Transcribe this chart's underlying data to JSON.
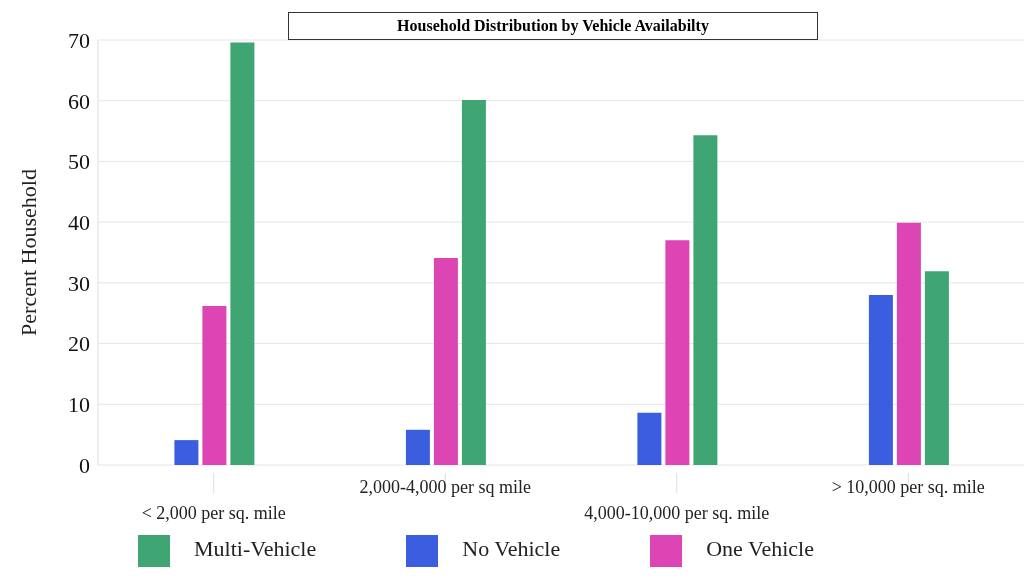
{
  "chart_data": {
    "type": "bar",
    "title": "Household Distribution by Vehicle Availabilty",
    "ylabel": "Percent Household",
    "categories": [
      "< 2,000 per sq. mile",
      "2,000-4,000 per sq mile",
      "4,000-10,000 per sq. mile",
      "> 10,000 per sq. mile"
    ],
    "series": [
      {
        "name": "No Vehicle",
        "color": "#3b5ee0",
        "values": [
          4.1,
          5.8,
          8.6,
          28
        ]
      },
      {
        "name": "One Vehicle",
        "color": "#de45b4",
        "values": [
          26.2,
          34.1,
          37,
          39.9
        ]
      },
      {
        "name": "Multi-Vehicle",
        "color": "#3fa673",
        "values": [
          69.6,
          60.1,
          54.3,
          31.9
        ]
      }
    ],
    "ylim": [
      0,
      70
    ],
    "yticks": [
      0,
      10,
      20,
      30,
      40,
      50,
      60,
      70
    ],
    "grid": "y",
    "legend": "bottom"
  }
}
